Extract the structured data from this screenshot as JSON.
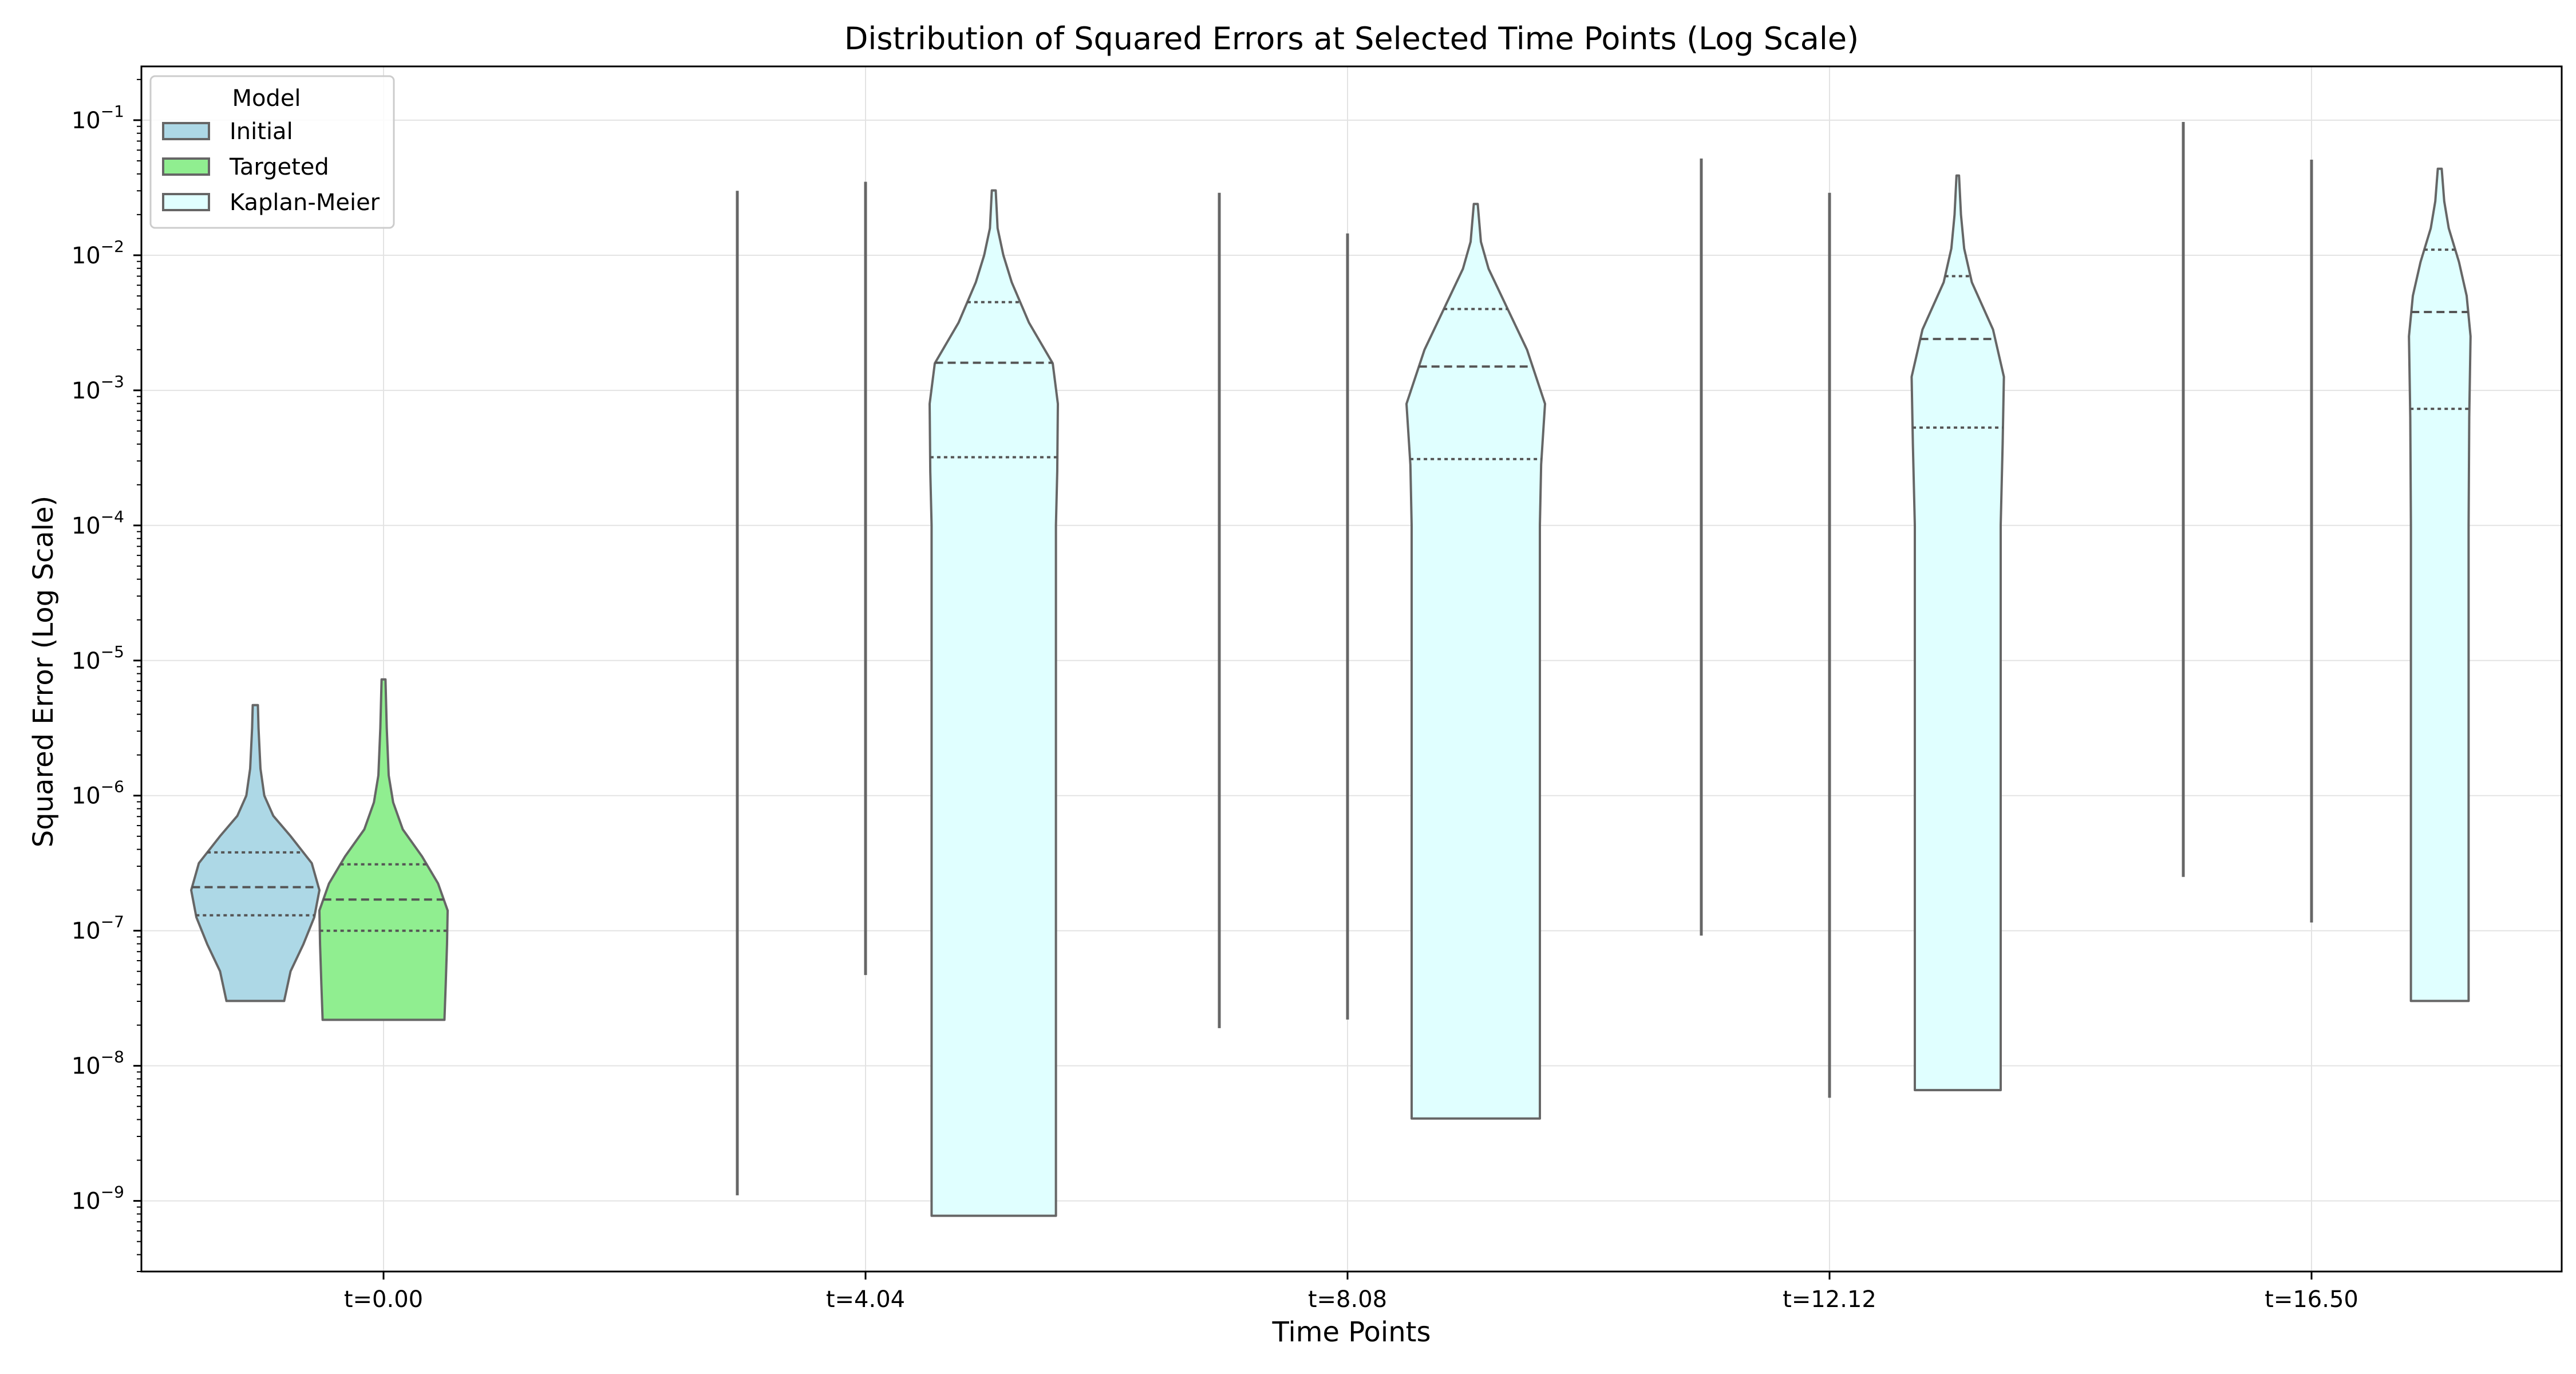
{
  "chart_data": {
    "type": "violin",
    "title": "Distribution of Squared Errors at Selected Time Points (Log Scale)",
    "xlabel": "Time Points",
    "ylabel": "Squared Error (Log Scale)",
    "y_scale": "log",
    "ylim": [
      3e-10,
      0.25
    ],
    "y_ticks": [
      {
        "value": 1e-09,
        "base": "10",
        "exp": "−9"
      },
      {
        "value": 1e-08,
        "base": "10",
        "exp": "−8"
      },
      {
        "value": 1e-07,
        "base": "10",
        "exp": "−7"
      },
      {
        "value": 1e-06,
        "base": "10",
        "exp": "−6"
      },
      {
        "value": 1e-05,
        "base": "10",
        "exp": "−5"
      },
      {
        "value": 0.0001,
        "base": "10",
        "exp": "−4"
      },
      {
        "value": 0.001,
        "base": "10",
        "exp": "−3"
      },
      {
        "value": 0.01,
        "base": "10",
        "exp": "−2"
      },
      {
        "value": 0.1,
        "base": "10",
        "exp": "−1"
      }
    ],
    "categories": [
      "t=0.00",
      "t=4.04",
      "t=8.08",
      "t=12.12",
      "t=16.50"
    ],
    "grid": true,
    "legend": {
      "title": "Model",
      "placement": "top-left"
    },
    "series": [
      {
        "name": "Initial",
        "color": "#add8e6"
      },
      {
        "name": "Targeted",
        "color": "#90ee90"
      },
      {
        "name": "Kaplan-Meier",
        "color": "#e0ffff"
      }
    ],
    "violins": [
      {
        "category": 0,
        "series": 0,
        "shape": "violin",
        "min": 3e-08,
        "max": 4.7e-06,
        "q1": 1.3e-07,
        "median": 2.1e-07,
        "q3": 3.8e-07,
        "profile": [
          [
            -7.52,
            0.45
          ],
          [
            -7.3,
            0.55
          ],
          [
            -7.1,
            0.75
          ],
          [
            -6.9,
            0.92
          ],
          [
            -6.7,
            1.0
          ],
          [
            -6.5,
            0.88
          ],
          [
            -6.3,
            0.55
          ],
          [
            -6.15,
            0.28
          ],
          [
            -6.0,
            0.14
          ],
          [
            -5.8,
            0.08
          ],
          [
            -5.5,
            0.05
          ],
          [
            -5.33,
            0.04
          ]
        ]
      },
      {
        "category": 0,
        "series": 1,
        "shape": "violin",
        "min": 2.2e-08,
        "max": 7.3e-06,
        "q1": 1e-07,
        "median": 1.7e-07,
        "q3": 3.1e-07,
        "profile": [
          [
            -7.66,
            0.95
          ],
          [
            -7.4,
            0.97
          ],
          [
            -7.1,
            0.99
          ],
          [
            -6.85,
            1.0
          ],
          [
            -6.65,
            0.85
          ],
          [
            -6.45,
            0.6
          ],
          [
            -6.25,
            0.3
          ],
          [
            -6.05,
            0.15
          ],
          [
            -5.85,
            0.08
          ],
          [
            -5.5,
            0.05
          ],
          [
            -5.14,
            0.03
          ]
        ]
      },
      {
        "category": 1,
        "series": 0,
        "shape": "line",
        "min": 1.1e-09,
        "max": 0.03
      },
      {
        "category": 1,
        "series": 1,
        "shape": "line",
        "min": 4.7e-08,
        "max": 0.035
      },
      {
        "category": 1,
        "series": 2,
        "shape": "violin",
        "min": 7.8e-10,
        "max": 0.03,
        "q1": 0.00032,
        "median": 0.0016,
        "q3": 0.0045,
        "profile": [
          [
            -9.11,
            0.97
          ],
          [
            -6.0,
            0.97
          ],
          [
            -4.0,
            0.97
          ],
          [
            -3.6,
            0.99
          ],
          [
            -3.1,
            1.0
          ],
          [
            -2.8,
            0.92
          ],
          [
            -2.5,
            0.55
          ],
          [
            -2.2,
            0.28
          ],
          [
            -2.0,
            0.15
          ],
          [
            -1.8,
            0.06
          ],
          [
            -1.52,
            0.03
          ]
        ]
      },
      {
        "category": 2,
        "series": 0,
        "shape": "line",
        "min": 1.9e-08,
        "max": 0.029
      },
      {
        "category": 2,
        "series": 1,
        "shape": "line",
        "min": 2.2e-08,
        "max": 0.0145
      },
      {
        "category": 2,
        "series": 2,
        "shape": "violin",
        "min": 4.1e-09,
        "max": 0.024,
        "q1": 0.00031,
        "median": 0.0015,
        "q3": 0.004,
        "profile": [
          [
            -8.39,
            1.0
          ],
          [
            -6.0,
            1.0
          ],
          [
            -4.0,
            1.0
          ],
          [
            -3.55,
            1.02
          ],
          [
            -3.1,
            1.08
          ],
          [
            -2.7,
            0.8
          ],
          [
            -2.4,
            0.5
          ],
          [
            -2.1,
            0.2
          ],
          [
            -1.9,
            0.08
          ],
          [
            -1.62,
            0.03
          ]
        ]
      },
      {
        "category": 3,
        "series": 0,
        "shape": "line",
        "min": 9.2e-08,
        "max": 0.052
      },
      {
        "category": 3,
        "series": 1,
        "shape": "line",
        "min": 5.8e-09,
        "max": 0.029
      },
      {
        "category": 3,
        "series": 2,
        "shape": "violin",
        "min": 6.6e-09,
        "max": 0.039,
        "q1": 0.00053,
        "median": 0.0024,
        "q3": 0.007,
        "profile": [
          [
            -8.18,
            0.67
          ],
          [
            -6.0,
            0.67
          ],
          [
            -4.0,
            0.67
          ],
          [
            -3.4,
            0.7
          ],
          [
            -2.9,
            0.72
          ],
          [
            -2.55,
            0.55
          ],
          [
            -2.2,
            0.22
          ],
          [
            -1.95,
            0.1
          ],
          [
            -1.7,
            0.05
          ],
          [
            -1.41,
            0.02
          ]
        ]
      },
      {
        "category": 4,
        "series": 0,
        "shape": "line",
        "min": 2.5e-07,
        "max": 0.097
      },
      {
        "category": 4,
        "series": 1,
        "shape": "line",
        "min": 1.15e-07,
        "max": 0.051
      },
      {
        "category": 4,
        "series": 2,
        "shape": "violin",
        "min": 3e-08,
        "max": 0.044,
        "q1": 0.00073,
        "median": 0.0038,
        "q3": 0.011,
        "profile": [
          [
            -7.52,
            0.45
          ],
          [
            -6.0,
            0.45
          ],
          [
            -4.0,
            0.45
          ],
          [
            -3.2,
            0.46
          ],
          [
            -2.6,
            0.48
          ],
          [
            -2.3,
            0.42
          ],
          [
            -2.05,
            0.3
          ],
          [
            -1.8,
            0.14
          ],
          [
            -1.6,
            0.07
          ],
          [
            -1.36,
            0.03
          ]
        ]
      }
    ]
  }
}
